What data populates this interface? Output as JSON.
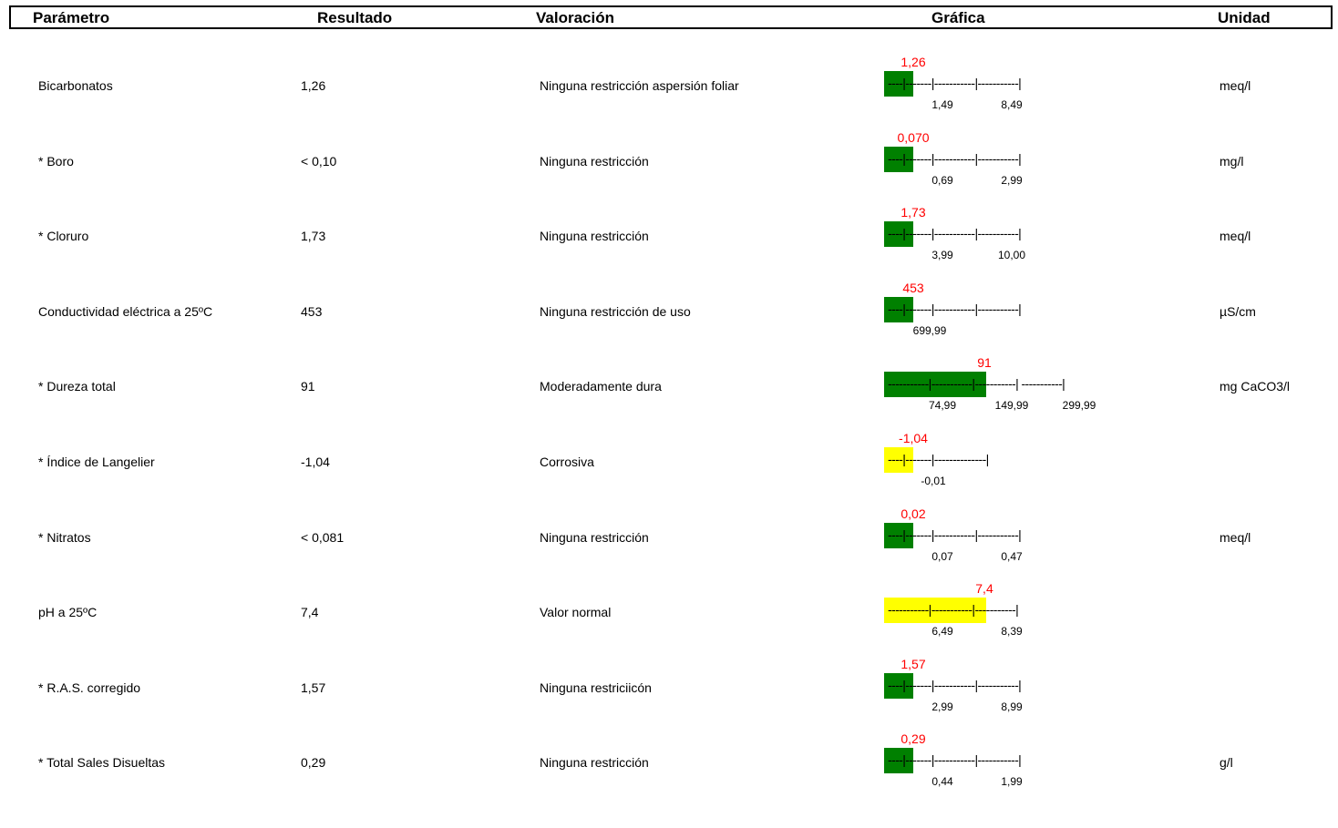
{
  "header": {
    "param": "Parámetro",
    "result": "Resultado",
    "valuation": "Valoración",
    "graph": "Gráfica",
    "unit": "Unidad"
  },
  "colors": {
    "green": "#008000",
    "yellow": "#ffff00",
    "value_red": "#ff0000"
  },
  "rows": [
    {
      "param": "Bicarbonatos",
      "result": "1,26",
      "valuation": "Ninguna restricción aspersión foliar",
      "unit": "meq/l",
      "gauge_value": "1,26",
      "bar_color": "green",
      "track": "----|-------|-----------|-----------|",
      "ticks": [
        "1,49",
        "8,49"
      ]
    },
    {
      "param": "* Boro",
      "result": "< 0,10",
      "valuation": "Ninguna restricción",
      "unit": "mg/l",
      "gauge_value": "0,070",
      "bar_color": "green",
      "track": "----|-------|-----------|-----------|",
      "ticks": [
        "0,69",
        "2,99"
      ]
    },
    {
      "param": "* Cloruro",
      "result": "1,73",
      "valuation": "Ninguna restricción",
      "unit": "meq/l",
      "gauge_value": "1,73",
      "bar_color": "green",
      "track": "----|-------|-----------|-----------|",
      "ticks": [
        "3,99",
        "10,00"
      ]
    },
    {
      "param": "Conductividad eléctrica a 25ºC",
      "result": "453",
      "valuation": "Ninguna restricción de uso",
      "unit": "µS/cm",
      "gauge_value": "453",
      "bar_color": "green",
      "track": "----|-------|-----------|-----------|",
      "ticks": [
        "699,99"
      ]
    },
    {
      "param": "* Dureza total",
      "result": "91",
      "valuation": "Moderadamente dura",
      "unit": "mg CaCO3/l",
      "gauge_value": "91",
      "bar_color": "green",
      "track": "-----------|-----------|-----------| -----------|",
      "ticks": [
        "74,99",
        "149,99",
        "299,99"
      ]
    },
    {
      "param": "* Índice de Langelier",
      "result": "-1,04",
      "valuation": "Corrosiva",
      "unit": "",
      "gauge_value": "-1,04",
      "bar_color": "yellow",
      "track": "----|-------|--------------|",
      "ticks": [
        "-0,01"
      ]
    },
    {
      "param": "* Nitratos",
      "result": "< 0,081",
      "valuation": "Ninguna restricción",
      "unit": "meq/l",
      "gauge_value": "0,02",
      "bar_color": "green",
      "track": "----|-------|-----------|-----------|",
      "ticks": [
        "0,07",
        "0,47"
      ]
    },
    {
      "param": "pH a 25ºC",
      "result": "7,4",
      "valuation": "Valor normal",
      "unit": "",
      "gauge_value": "7,4",
      "bar_color": "yellow",
      "track": "-----------|-----------|-----------|",
      "ticks": [
        "6,49",
        "8,39"
      ]
    },
    {
      "param": "* R.A.S. corregido",
      "result": "1,57",
      "valuation": "Ninguna restriciicón",
      "unit": "",
      "gauge_value": "1,57",
      "bar_color": "green",
      "track": "----|-------|-----------|-----------|",
      "ticks": [
        "2,99",
        "8,99"
      ]
    },
    {
      "param": "* Total Sales Disueltas",
      "result": "0,29",
      "valuation": "Ninguna restricción",
      "unit": "g/l",
      "gauge_value": "0,29",
      "bar_color": "green",
      "track": "----|-------|-----------|-----------|",
      "ticks": [
        "0,44",
        "1,99"
      ]
    }
  ]
}
